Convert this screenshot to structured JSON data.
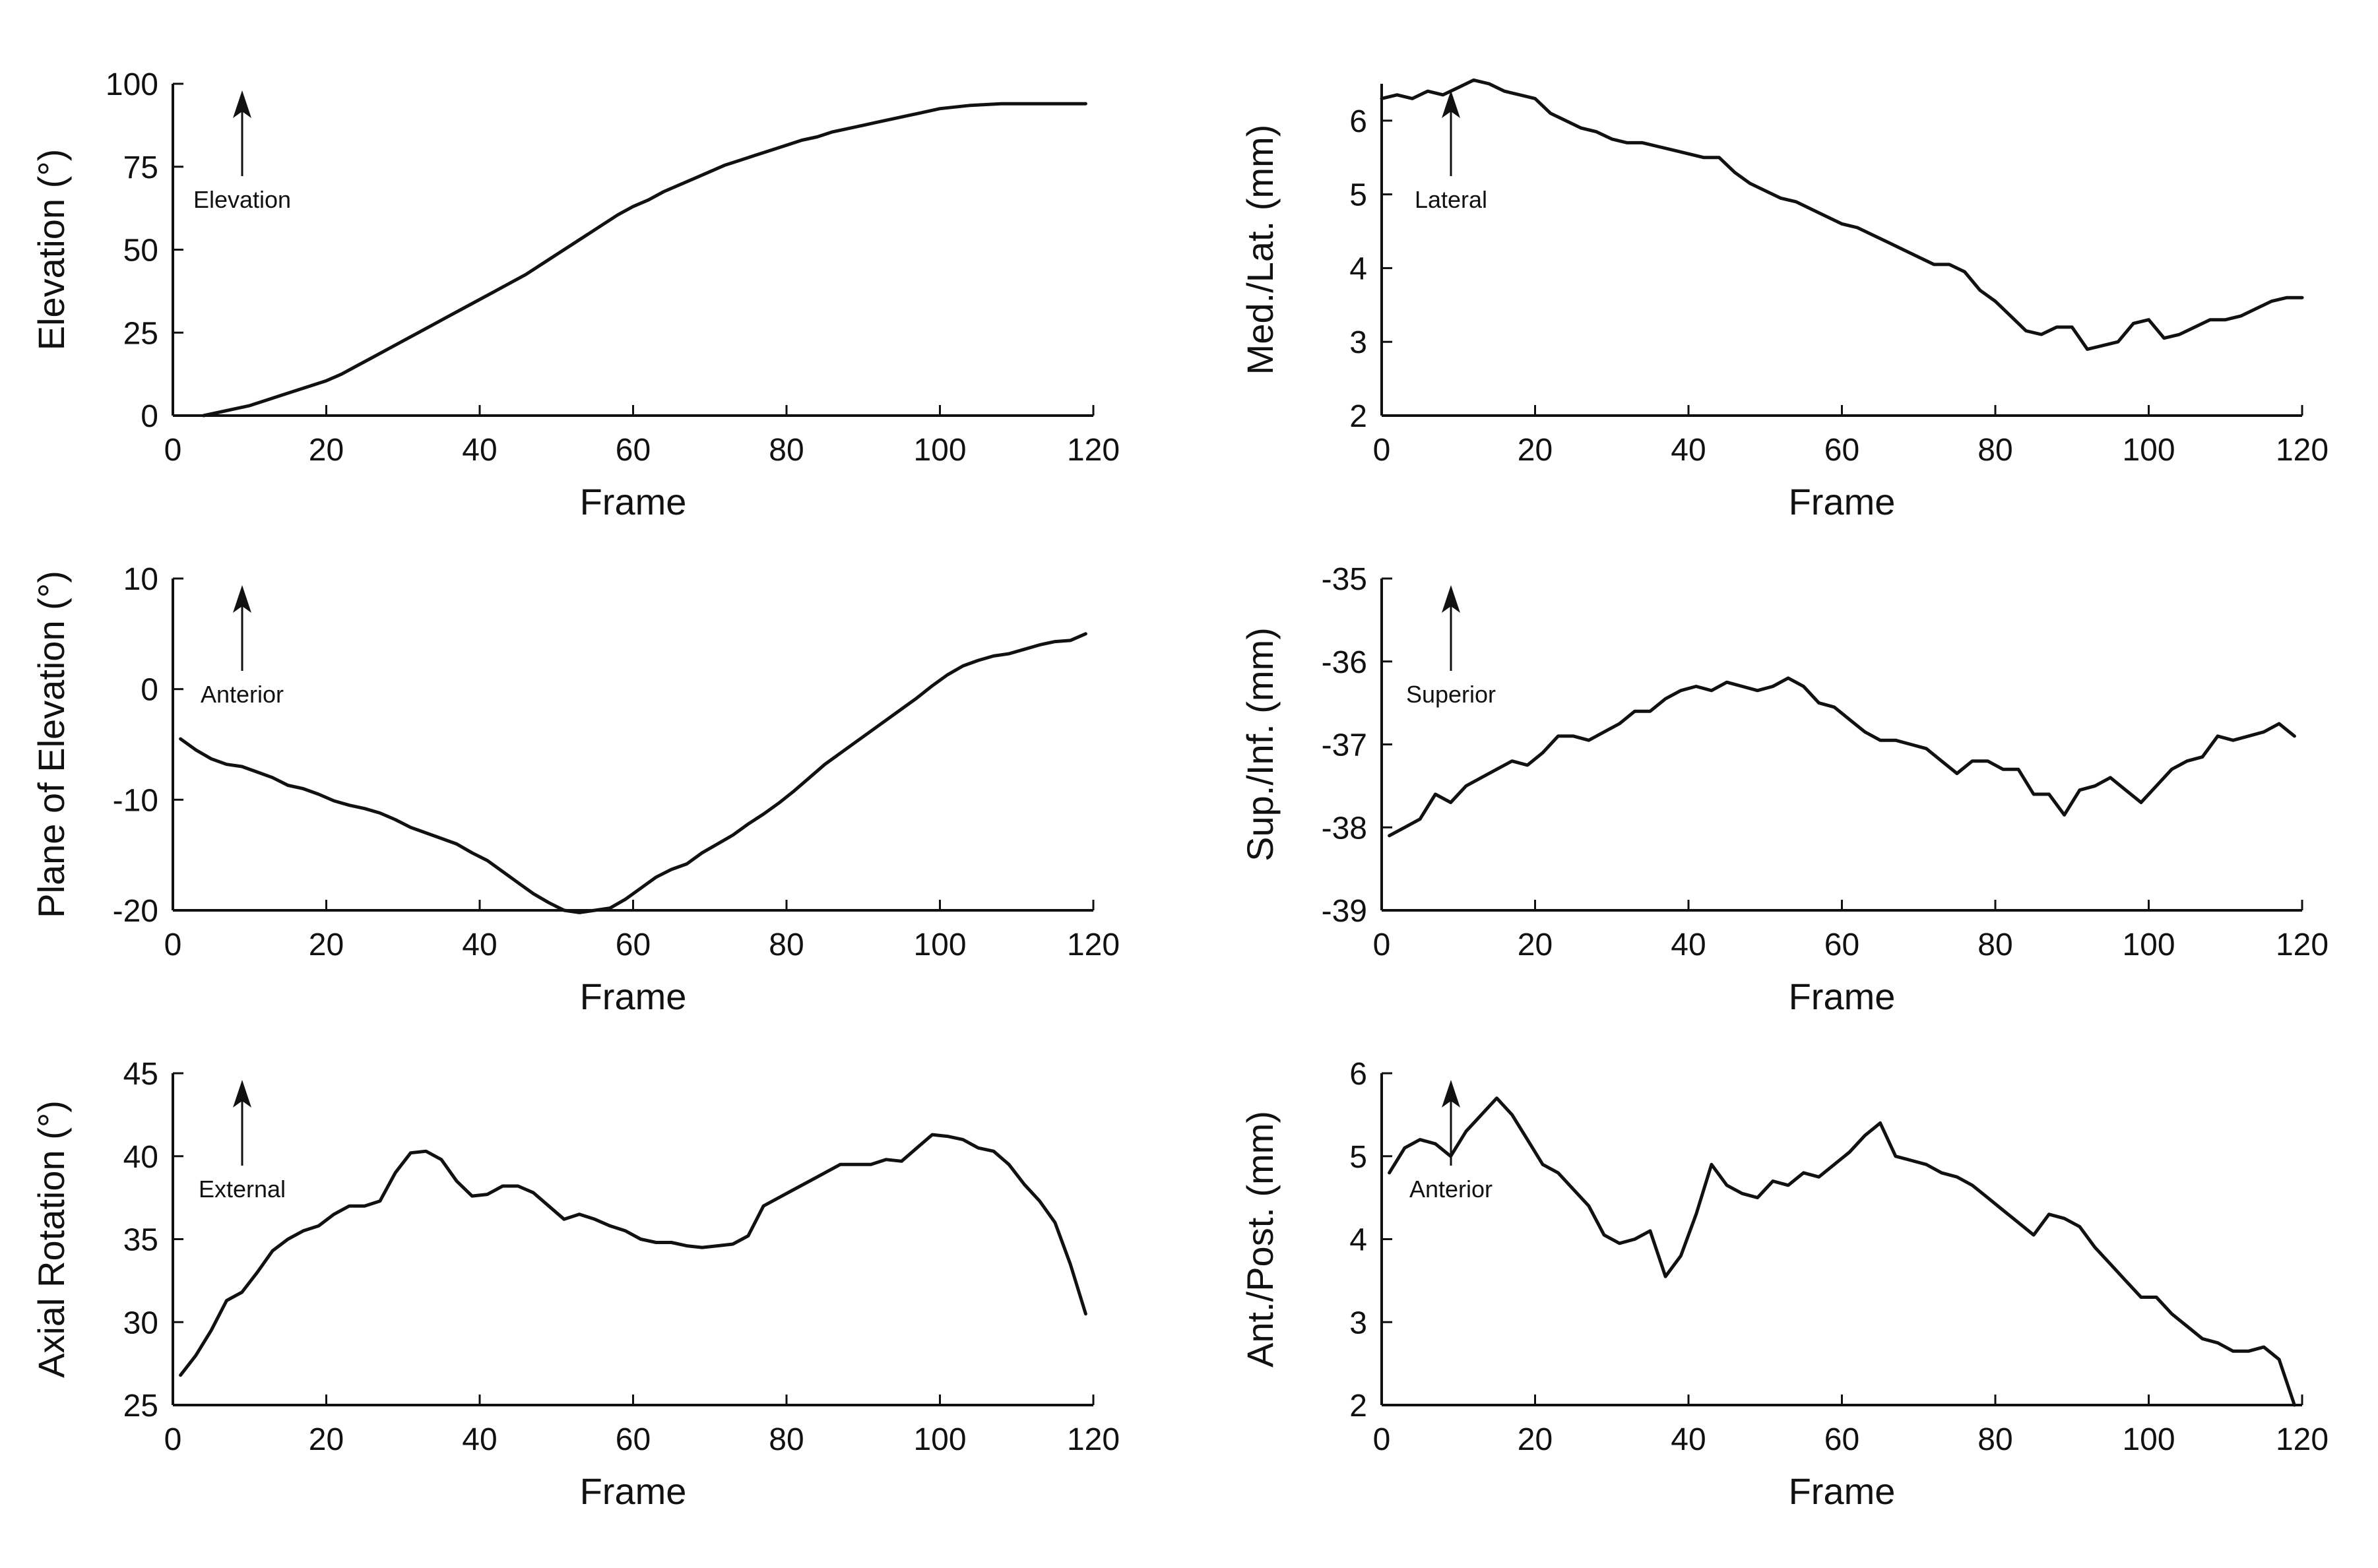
{
  "chart_data": [
    {
      "type": "line",
      "xlabel": "Frame",
      "ylabel": "Elevation (°)",
      "xlim": [
        0,
        120
      ],
      "ylim": [
        0,
        100
      ],
      "xticks": [
        0,
        20,
        40,
        60,
        80,
        100,
        120
      ],
      "yticks": [
        0,
        25,
        50,
        75,
        100
      ],
      "annotation": "Elevation",
      "series": [
        {
          "x": [
            4,
            6,
            8,
            10,
            12,
            14,
            16,
            18,
            20,
            22,
            24,
            26,
            28,
            30,
            32,
            34,
            36,
            38,
            40,
            42,
            44,
            46,
            48,
            50,
            52,
            54,
            56,
            58,
            60,
            62,
            64,
            66,
            68,
            70,
            72,
            74,
            76,
            78,
            80,
            82,
            84,
            86,
            88,
            90,
            92,
            94,
            96,
            98,
            100,
            104,
            108,
            112,
            116,
            119
          ],
          "y": [
            0,
            1,
            2,
            3,
            4.5,
            6,
            7.5,
            9,
            10.5,
            12.5,
            15,
            17.5,
            20,
            22.5,
            25,
            27.5,
            30,
            32.5,
            35,
            37.5,
            40,
            42.5,
            45.5,
            48.5,
            51.5,
            54.5,
            57.5,
            60.5,
            63,
            65,
            67.5,
            69.5,
            71.5,
            73.5,
            75.5,
            77,
            78.5,
            80,
            81.5,
            83,
            84,
            85.5,
            86.5,
            87.5,
            88.5,
            89.5,
            90.5,
            91.5,
            92.5,
            93.5,
            94,
            94,
            94,
            94
          ]
        }
      ]
    },
    {
      "type": "line",
      "xlabel": "Frame",
      "ylabel": "Med./Lat. (mm)",
      "xlim": [
        0,
        120
      ],
      "ylim": [
        2,
        6.5
      ],
      "xticks": [
        0,
        20,
        40,
        60,
        80,
        100,
        120
      ],
      "yticks": [
        2,
        3,
        4,
        5,
        6
      ],
      "annotation": "Lateral",
      "series": [
        {
          "x": [
            0,
            2,
            4,
            6,
            8,
            10,
            12,
            14,
            16,
            18,
            20,
            22,
            24,
            26,
            28,
            30,
            32,
            34,
            36,
            38,
            40,
            42,
            44,
            46,
            48,
            50,
            52,
            54,
            56,
            58,
            60,
            62,
            64,
            66,
            68,
            70,
            72,
            74,
            76,
            78,
            80,
            82,
            84,
            86,
            88,
            90,
            92,
            94,
            96,
            98,
            100,
            102,
            104,
            106,
            108,
            110,
            112,
            114,
            116,
            118,
            120
          ],
          "y": [
            6.3,
            6.35,
            6.3,
            6.4,
            6.35,
            6.45,
            6.55,
            6.5,
            6.4,
            6.35,
            6.3,
            6.1,
            6.0,
            5.9,
            5.85,
            5.75,
            5.7,
            5.7,
            5.65,
            5.6,
            5.55,
            5.5,
            5.5,
            5.3,
            5.15,
            5.05,
            4.95,
            4.9,
            4.8,
            4.7,
            4.6,
            4.55,
            4.45,
            4.35,
            4.25,
            4.15,
            4.05,
            4.05,
            3.95,
            3.7,
            3.55,
            3.35,
            3.15,
            3.1,
            3.2,
            3.2,
            2.9,
            2.95,
            3.0,
            3.25,
            3.3,
            3.05,
            3.1,
            3.2,
            3.3,
            3.3,
            3.35,
            3.45,
            3.55,
            3.6,
            3.6
          ]
        }
      ]
    },
    {
      "type": "line",
      "xlabel": "Frame",
      "ylabel": "Plane of Elevation (°)",
      "xlim": [
        0,
        120
      ],
      "ylim": [
        -20,
        10
      ],
      "xticks": [
        0,
        20,
        40,
        60,
        80,
        100,
        120
      ],
      "yticks": [
        -20,
        -10,
        0,
        10
      ],
      "annotation": "Anterior",
      "series": [
        {
          "x": [
            1,
            3,
            5,
            7,
            9,
            11,
            13,
            15,
            17,
            19,
            21,
            23,
            25,
            27,
            29,
            31,
            33,
            35,
            37,
            39,
            41,
            43,
            45,
            47,
            49,
            51,
            53,
            55,
            57,
            59,
            61,
            63,
            65,
            67,
            69,
            71,
            73,
            75,
            77,
            79,
            81,
            83,
            85,
            87,
            89,
            91,
            93,
            95,
            97,
            99,
            101,
            103,
            105,
            107,
            109,
            111,
            113,
            115,
            117,
            119
          ],
          "y": [
            -4.5,
            -5.5,
            -6.3,
            -6.8,
            -7.0,
            -7.5,
            -8.0,
            -8.7,
            -9.0,
            -9.5,
            -10.1,
            -10.5,
            -10.8,
            -11.2,
            -11.8,
            -12.5,
            -13.0,
            -13.5,
            -14.0,
            -14.8,
            -15.5,
            -16.5,
            -17.5,
            -18.5,
            -19.3,
            -20.0,
            -20.2,
            -20.0,
            -19.8,
            -19.0,
            -18.0,
            -17.0,
            -16.3,
            -15.8,
            -14.8,
            -14.0,
            -13.2,
            -12.2,
            -11.3,
            -10.3,
            -9.2,
            -8.0,
            -6.8,
            -5.8,
            -4.8,
            -3.8,
            -2.8,
            -1.8,
            -0.8,
            0.3,
            1.3,
            2.1,
            2.6,
            3.0,
            3.2,
            3.6,
            4.0,
            4.3,
            4.4,
            5.0
          ]
        }
      ]
    },
    {
      "type": "line",
      "xlabel": "Frame",
      "ylabel": "Sup./Inf. (mm)",
      "xlim": [
        0,
        120
      ],
      "ylim": [
        -39,
        -35
      ],
      "xticks": [
        0,
        20,
        40,
        60,
        80,
        100,
        120
      ],
      "yticks": [
        -39,
        -38,
        -37,
        -36,
        -35
      ],
      "annotation": "Superior",
      "series": [
        {
          "x": [
            1,
            3,
            5,
            7,
            9,
            11,
            13,
            15,
            17,
            19,
            21,
            23,
            25,
            27,
            29,
            31,
            33,
            35,
            37,
            39,
            41,
            43,
            45,
            47,
            49,
            51,
            53,
            55,
            57,
            59,
            61,
            63,
            65,
            67,
            69,
            71,
            73,
            75,
            77,
            79,
            81,
            83,
            85,
            87,
            89,
            91,
            93,
            95,
            97,
            99,
            101,
            103,
            105,
            107,
            109,
            111,
            113,
            115,
            117,
            119
          ],
          "y": [
            -38.1,
            -38.0,
            -37.9,
            -37.6,
            -37.7,
            -37.5,
            -37.4,
            -37.3,
            -37.2,
            -37.25,
            -37.1,
            -36.9,
            -36.9,
            -36.95,
            -36.85,
            -36.75,
            -36.6,
            -36.6,
            -36.45,
            -36.35,
            -36.3,
            -36.35,
            -36.25,
            -36.3,
            -36.35,
            -36.3,
            -36.2,
            -36.3,
            -36.5,
            -36.55,
            -36.7,
            -36.85,
            -36.95,
            -36.95,
            -37.0,
            -37.05,
            -37.2,
            -37.35,
            -37.2,
            -37.2,
            -37.3,
            -37.3,
            -37.6,
            -37.6,
            -37.85,
            -37.55,
            -37.5,
            -37.4,
            -37.55,
            -37.7,
            -37.5,
            -37.3,
            -37.2,
            -37.15,
            -36.9,
            -36.95,
            -36.9,
            -36.85,
            -36.75,
            -36.9
          ]
        }
      ]
    },
    {
      "type": "line",
      "xlabel": "Frame",
      "ylabel": "Axial Rotation (°)",
      "xlim": [
        0,
        120
      ],
      "ylim": [
        25,
        45
      ],
      "xticks": [
        0,
        20,
        40,
        60,
        80,
        100,
        120
      ],
      "yticks": [
        25,
        30,
        35,
        40,
        45
      ],
      "annotation": "External",
      "series": [
        {
          "x": [
            1,
            3,
            5,
            7,
            9,
            11,
            13,
            15,
            17,
            19,
            21,
            23,
            25,
            27,
            29,
            31,
            33,
            35,
            37,
            39,
            41,
            43,
            45,
            47,
            49,
            51,
            53,
            55,
            57,
            59,
            61,
            63,
            65,
            67,
            69,
            71,
            73,
            75,
            77,
            79,
            81,
            83,
            85,
            87,
            89,
            91,
            93,
            95,
            97,
            99,
            101,
            103,
            105,
            107,
            109,
            111,
            113,
            115,
            117,
            119
          ],
          "y": [
            26.8,
            28.0,
            29.5,
            31.3,
            31.8,
            33.0,
            34.3,
            35.0,
            35.5,
            35.8,
            36.5,
            37.0,
            37.0,
            37.3,
            39.0,
            40.2,
            40.3,
            39.8,
            38.5,
            37.6,
            37.7,
            38.2,
            38.2,
            37.8,
            37.0,
            36.2,
            36.5,
            36.2,
            35.8,
            35.5,
            35.0,
            34.8,
            34.8,
            34.6,
            34.5,
            34.6,
            34.7,
            35.2,
            37.0,
            37.5,
            38.0,
            38.5,
            39.0,
            39.5,
            39.5,
            39.5,
            39.8,
            39.7,
            40.5,
            41.3,
            41.2,
            41.0,
            40.5,
            40.3,
            39.5,
            38.3,
            37.3,
            36.0,
            33.5,
            30.5
          ]
        }
      ]
    },
    {
      "type": "line",
      "xlabel": "Frame",
      "ylabel": "Ant./Post. (mm)",
      "xlim": [
        0,
        120
      ],
      "ylim": [
        2,
        6
      ],
      "xticks": [
        0,
        20,
        40,
        60,
        80,
        100,
        120
      ],
      "yticks": [
        2,
        3,
        4,
        5,
        6
      ],
      "annotation": "Anterior",
      "series": [
        {
          "x": [
            1,
            3,
            5,
            7,
            9,
            11,
            13,
            15,
            17,
            19,
            21,
            23,
            25,
            27,
            29,
            31,
            33,
            35,
            37,
            39,
            41,
            43,
            45,
            47,
            49,
            51,
            53,
            55,
            57,
            59,
            61,
            63,
            65,
            67,
            69,
            71,
            73,
            75,
            77,
            79,
            81,
            83,
            85,
            87,
            89,
            91,
            93,
            95,
            97,
            99,
            101,
            103,
            105,
            107,
            109,
            111,
            113,
            115,
            117,
            119
          ],
          "y": [
            4.8,
            5.1,
            5.2,
            5.15,
            5.0,
            5.3,
            5.5,
            5.7,
            5.5,
            5.2,
            4.9,
            4.8,
            4.6,
            4.4,
            4.05,
            3.95,
            4.0,
            4.1,
            3.55,
            3.8,
            4.3,
            4.9,
            4.65,
            4.55,
            4.5,
            4.7,
            4.65,
            4.8,
            4.75,
            4.9,
            5.05,
            5.25,
            5.4,
            5.0,
            4.95,
            4.9,
            4.8,
            4.75,
            4.65,
            4.5,
            4.35,
            4.2,
            4.05,
            4.3,
            4.25,
            4.15,
            3.9,
            3.7,
            3.5,
            3.3,
            3.3,
            3.1,
            2.95,
            2.8,
            2.75,
            2.65,
            2.65,
            2.7,
            2.55,
            2.0
          ]
        }
      ]
    }
  ]
}
